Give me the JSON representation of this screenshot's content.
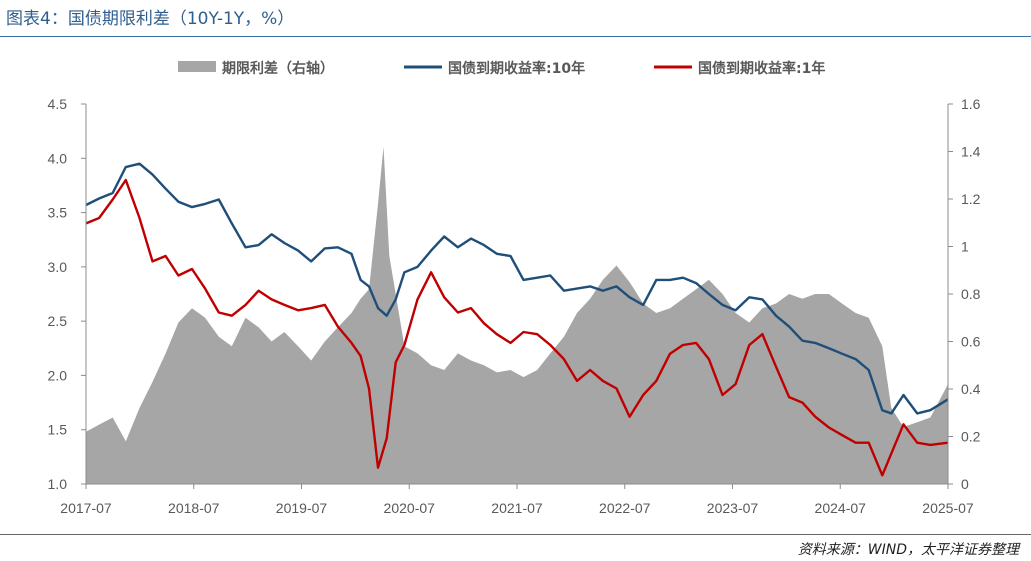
{
  "title": "图表4：国债期限利差（10Y-1Y，%）",
  "source": "资料来源：WIND，太平洋证券整理",
  "chart_data": {
    "type": "line",
    "title": "图表4：国债期限利差（10Y-1Y，%）",
    "xlabel": "",
    "ylabel_left": "",
    "ylabel_right": "",
    "x_ticks": [
      "2017-07",
      "2018-07",
      "2019-07",
      "2020-07",
      "2021-07",
      "2022-07",
      "2023-07",
      "2024-07",
      "2025-07"
    ],
    "y_left_ticks": [
      "1.0",
      "1.5",
      "2.0",
      "2.5",
      "3.0",
      "3.5",
      "4.0",
      "4.5"
    ],
    "y_right_ticks": [
      "0",
      "0.2",
      "0.4",
      "0.6",
      "0.8",
      "1",
      "1.2",
      "1.4",
      "1.6"
    ],
    "ylim_left": [
      1.0,
      4.5
    ],
    "ylim_right": [
      0,
      1.6
    ],
    "legend_position": "top",
    "grid": false,
    "x_range": [
      "2017-07-01",
      "2025-08-15"
    ],
    "series": [
      {
        "name": "期限利差（右轴）",
        "type": "area",
        "axis": "right",
        "color": "#a6a6a6",
        "x": [
          "2017-07-01",
          "2017-08-15",
          "2017-10-01",
          "2017-11-15",
          "2018-01-01",
          "2018-02-15",
          "2018-04-01",
          "2018-05-15",
          "2018-07-01",
          "2018-08-15",
          "2018-10-01",
          "2018-11-15",
          "2019-01-01",
          "2019-02-15",
          "2019-04-01",
          "2019-05-15",
          "2019-07-01",
          "2019-08-15",
          "2019-10-01",
          "2019-11-15",
          "2020-01-01",
          "2020-02-01",
          "2020-03-01",
          "2020-04-01",
          "2020-04-20",
          "2020-05-10",
          "2020-06-01",
          "2020-07-01",
          "2020-08-15",
          "2020-10-01",
          "2020-11-15",
          "2021-01-01",
          "2021-02-15",
          "2021-04-01",
          "2021-05-15",
          "2021-07-01",
          "2021-08-15",
          "2021-10-01",
          "2021-11-15",
          "2022-01-01",
          "2022-02-15",
          "2022-04-01",
          "2022-05-15",
          "2022-07-01",
          "2022-08-15",
          "2022-10-01",
          "2022-11-15",
          "2023-01-01",
          "2023-02-15",
          "2023-04-01",
          "2023-05-15",
          "2023-07-01",
          "2023-08-15",
          "2023-10-01",
          "2023-11-15",
          "2024-01-01",
          "2024-02-15",
          "2024-04-01",
          "2024-05-15",
          "2024-07-01",
          "2024-08-15",
          "2024-10-01",
          "2024-11-15",
          "2025-01-01",
          "2025-02-01",
          "2025-03-15",
          "2025-05-01",
          "2025-06-15",
          "2025-08-15"
        ],
        "values": [
          0.22,
          0.25,
          0.28,
          0.18,
          0.32,
          0.43,
          0.55,
          0.68,
          0.74,
          0.7,
          0.62,
          0.58,
          0.7,
          0.66,
          0.6,
          0.64,
          0.58,
          0.52,
          0.6,
          0.66,
          0.72,
          0.78,
          0.82,
          1.18,
          1.42,
          0.96,
          0.8,
          0.58,
          0.55,
          0.5,
          0.48,
          0.55,
          0.52,
          0.5,
          0.47,
          0.48,
          0.45,
          0.48,
          0.55,
          0.62,
          0.72,
          0.78,
          0.86,
          0.92,
          0.85,
          0.76,
          0.72,
          0.74,
          0.78,
          0.82,
          0.86,
          0.8,
          0.72,
          0.68,
          0.74,
          0.76,
          0.8,
          0.78,
          0.8,
          0.8,
          0.76,
          0.72,
          0.7,
          0.58,
          0.32,
          0.24,
          0.26,
          0.28,
          0.42
        ]
      },
      {
        "name": "国债到期收益率:10年",
        "type": "line",
        "axis": "left",
        "color": "#1f4e79",
        "x": [
          "2017-07-01",
          "2017-08-15",
          "2017-10-01",
          "2017-11-15",
          "2018-01-01",
          "2018-02-15",
          "2018-04-01",
          "2018-05-15",
          "2018-07-01",
          "2018-08-15",
          "2018-10-01",
          "2018-11-15",
          "2019-01-01",
          "2019-02-15",
          "2019-04-01",
          "2019-05-15",
          "2019-07-01",
          "2019-08-15",
          "2019-10-01",
          "2019-11-15",
          "2020-01-01",
          "2020-02-01",
          "2020-03-01",
          "2020-04-01",
          "2020-05-01",
          "2020-06-01",
          "2020-07-01",
          "2020-08-15",
          "2020-10-01",
          "2020-11-15",
          "2021-01-01",
          "2021-02-15",
          "2021-04-01",
          "2021-05-15",
          "2021-07-01",
          "2021-08-15",
          "2021-10-01",
          "2021-11-15",
          "2022-01-01",
          "2022-02-15",
          "2022-04-01",
          "2022-05-15",
          "2022-07-01",
          "2022-08-15",
          "2022-10-01",
          "2022-11-15",
          "2023-01-01",
          "2023-02-15",
          "2023-04-01",
          "2023-05-15",
          "2023-07-01",
          "2023-08-15",
          "2023-10-01",
          "2023-11-15",
          "2024-01-01",
          "2024-02-15",
          "2024-04-01",
          "2024-05-15",
          "2024-07-01",
          "2024-08-15",
          "2024-10-01",
          "2024-11-15",
          "2025-01-01",
          "2025-02-01",
          "2025-03-15",
          "2025-05-01",
          "2025-06-15",
          "2025-08-15"
        ],
        "values": [
          3.57,
          3.63,
          3.68,
          3.92,
          3.95,
          3.85,
          3.72,
          3.6,
          3.55,
          3.58,
          3.62,
          3.4,
          3.18,
          3.2,
          3.3,
          3.22,
          3.15,
          3.05,
          3.17,
          3.18,
          3.12,
          2.88,
          2.82,
          2.62,
          2.55,
          2.7,
          2.95,
          3.0,
          3.15,
          3.28,
          3.18,
          3.26,
          3.2,
          3.12,
          3.1,
          2.88,
          2.9,
          2.92,
          2.78,
          2.8,
          2.82,
          2.78,
          2.82,
          2.72,
          2.65,
          2.88,
          2.88,
          2.9,
          2.85,
          2.75,
          2.65,
          2.6,
          2.72,
          2.7,
          2.55,
          2.45,
          2.32,
          2.3,
          2.25,
          2.2,
          2.15,
          2.05,
          1.68,
          1.65,
          1.82,
          1.65,
          1.68,
          1.78
        ]
      },
      {
        "name": "国债到期收益率:1年",
        "type": "line",
        "axis": "left",
        "color": "#c00000",
        "x": [
          "2017-07-01",
          "2017-08-15",
          "2017-10-01",
          "2017-11-15",
          "2018-01-01",
          "2018-02-15",
          "2018-04-01",
          "2018-05-15",
          "2018-07-01",
          "2018-08-15",
          "2018-10-01",
          "2018-11-15",
          "2019-01-01",
          "2019-02-15",
          "2019-04-01",
          "2019-05-15",
          "2019-07-01",
          "2019-08-15",
          "2019-10-01",
          "2019-11-15",
          "2020-01-01",
          "2020-02-01",
          "2020-03-01",
          "2020-04-01",
          "2020-05-01",
          "2020-06-01",
          "2020-07-01",
          "2020-08-15",
          "2020-10-01",
          "2020-11-15",
          "2021-01-01",
          "2021-02-15",
          "2021-04-01",
          "2021-05-15",
          "2021-07-01",
          "2021-08-15",
          "2021-10-01",
          "2021-11-15",
          "2022-01-01",
          "2022-02-15",
          "2022-04-01",
          "2022-05-15",
          "2022-07-01",
          "2022-08-15",
          "2022-10-01",
          "2022-11-15",
          "2023-01-01",
          "2023-02-15",
          "2023-04-01",
          "2023-05-15",
          "2023-07-01",
          "2023-08-15",
          "2023-10-01",
          "2023-11-15",
          "2024-01-01",
          "2024-02-15",
          "2024-04-01",
          "2024-05-15",
          "2024-07-01",
          "2024-08-15",
          "2024-10-01",
          "2024-11-15",
          "2025-01-01",
          "2025-02-01",
          "2025-03-15",
          "2025-05-01",
          "2025-06-15",
          "2025-08-15"
        ],
        "values": [
          3.4,
          3.45,
          3.62,
          3.8,
          3.45,
          3.05,
          3.1,
          2.92,
          2.98,
          2.8,
          2.58,
          2.55,
          2.65,
          2.78,
          2.7,
          2.65,
          2.6,
          2.62,
          2.65,
          2.45,
          2.3,
          2.18,
          1.88,
          1.15,
          1.42,
          2.12,
          2.28,
          2.7,
          2.95,
          2.72,
          2.58,
          2.62,
          2.48,
          2.38,
          2.3,
          2.4,
          2.38,
          2.28,
          2.15,
          1.95,
          2.05,
          1.95,
          1.88,
          1.62,
          1.82,
          1.95,
          2.2,
          2.28,
          2.3,
          2.15,
          1.82,
          1.92,
          2.28,
          2.38,
          2.08,
          1.8,
          1.75,
          1.62,
          1.52,
          1.45,
          1.38,
          1.38,
          1.08,
          1.28,
          1.55,
          1.38,
          1.36,
          1.38
        ]
      }
    ]
  }
}
